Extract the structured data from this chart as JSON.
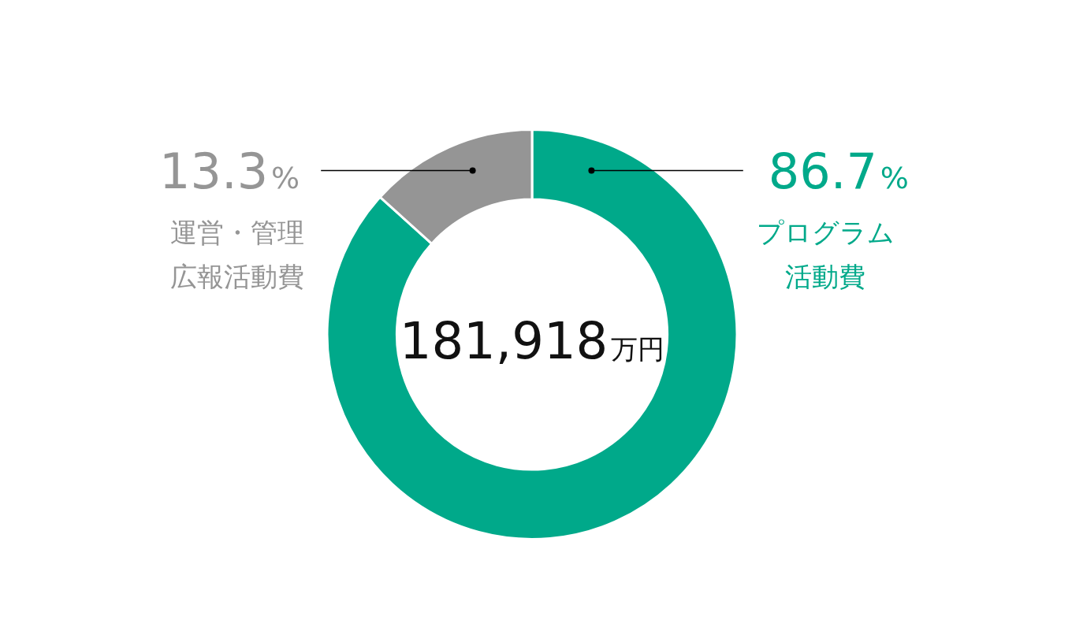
{
  "chart_data": {
    "type": "donut",
    "categories": [
      "プログラム活動費",
      "運営・管理広報活動費"
    ],
    "values": [
      86.7,
      13.3
    ],
    "colors": [
      "#00a98a",
      "#959595"
    ],
    "value_labels": [
      "86.7%",
      "13.3%"
    ],
    "annotations": [
      "181,918万円"
    ],
    "legend": false
  }
}
